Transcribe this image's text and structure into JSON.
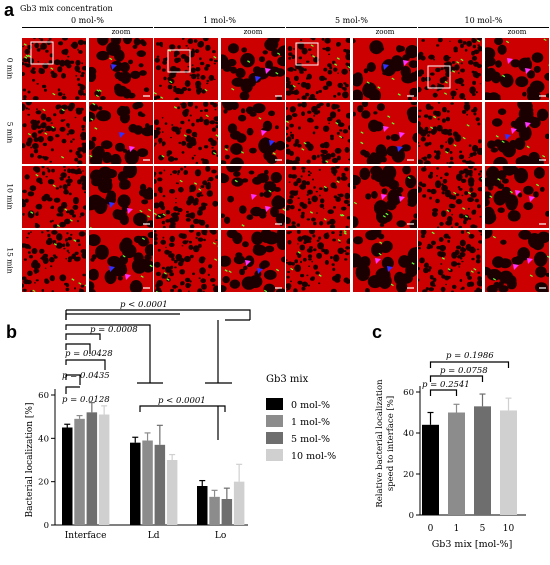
{
  "panel_a": {
    "letter": "a",
    "heading": "Gb3 mix concentration",
    "columns": [
      "0 mol-%",
      "1 mol-%",
      "5 mol-%",
      "10 mol-%"
    ],
    "zoom_label": "zoom",
    "rows": [
      "0 min",
      "5 min",
      "10 min",
      "15 min"
    ],
    "image_colors": {
      "membrane": "#cc0000",
      "domain": "#1a0000",
      "bacteria": "#66ff33",
      "arrow_blue": "#3030ff",
      "arrow_magenta": "#ff33ff"
    }
  },
  "panel_b": {
    "letter": "b",
    "legend_title": "Gb3 mix",
    "p_values": [
      "p < 0.0001",
      "p = 0.0008",
      "p = 0.0428",
      "p = 0.0435",
      "p = 0.0128",
      "p < 0.0001"
    ]
  },
  "panel_c": {
    "letter": "c",
    "p_values": [
      "p = 0.1986",
      "p = 0.0758",
      "p = 0.2541"
    ]
  },
  "chart_data": [
    {
      "type": "bar",
      "panel": "b",
      "categories": [
        "Interface",
        "Ld",
        "Lo"
      ],
      "series": [
        {
          "name": "0 mol-%",
          "values": [
            45,
            38,
            18
          ],
          "errors": [
            1.5,
            2.5,
            2.5
          ],
          "color": "#000000"
        },
        {
          "name": "1 mol-%",
          "values": [
            49,
            39,
            13
          ],
          "errors": [
            1.5,
            3.5,
            3
          ],
          "color": "#8c8c8c"
        },
        {
          "name": "5 mol-%",
          "values": [
            52,
            37,
            12
          ],
          "errors": [
            4.5,
            9,
            5
          ],
          "color": "#6e6e6e"
        },
        {
          "name": "10 mol-%",
          "values": [
            51,
            30,
            20
          ],
          "errors": [
            4,
            2.5,
            8
          ],
          "color": "#d0d0d0"
        }
      ],
      "ylabel": "Bacterial localization [%]",
      "ylim": [
        0,
        60
      ],
      "yticks": [
        0,
        20,
        40,
        60
      ]
    },
    {
      "type": "bar",
      "panel": "c",
      "categories": [
        "0",
        "1",
        "5",
        "10"
      ],
      "values": [
        44,
        50,
        53,
        51
      ],
      "errors": [
        6,
        4,
        6,
        6
      ],
      "colors": [
        "#000000",
        "#8c8c8c",
        "#6e6e6e",
        "#d0d0d0"
      ],
      "xlabel": "Gb3 mix [mol-%]",
      "ylabel": "Relative bacterial localization speed to interface [%]",
      "ylim": [
        0,
        60
      ],
      "yticks": [
        0,
        20,
        40,
        60
      ]
    }
  ]
}
